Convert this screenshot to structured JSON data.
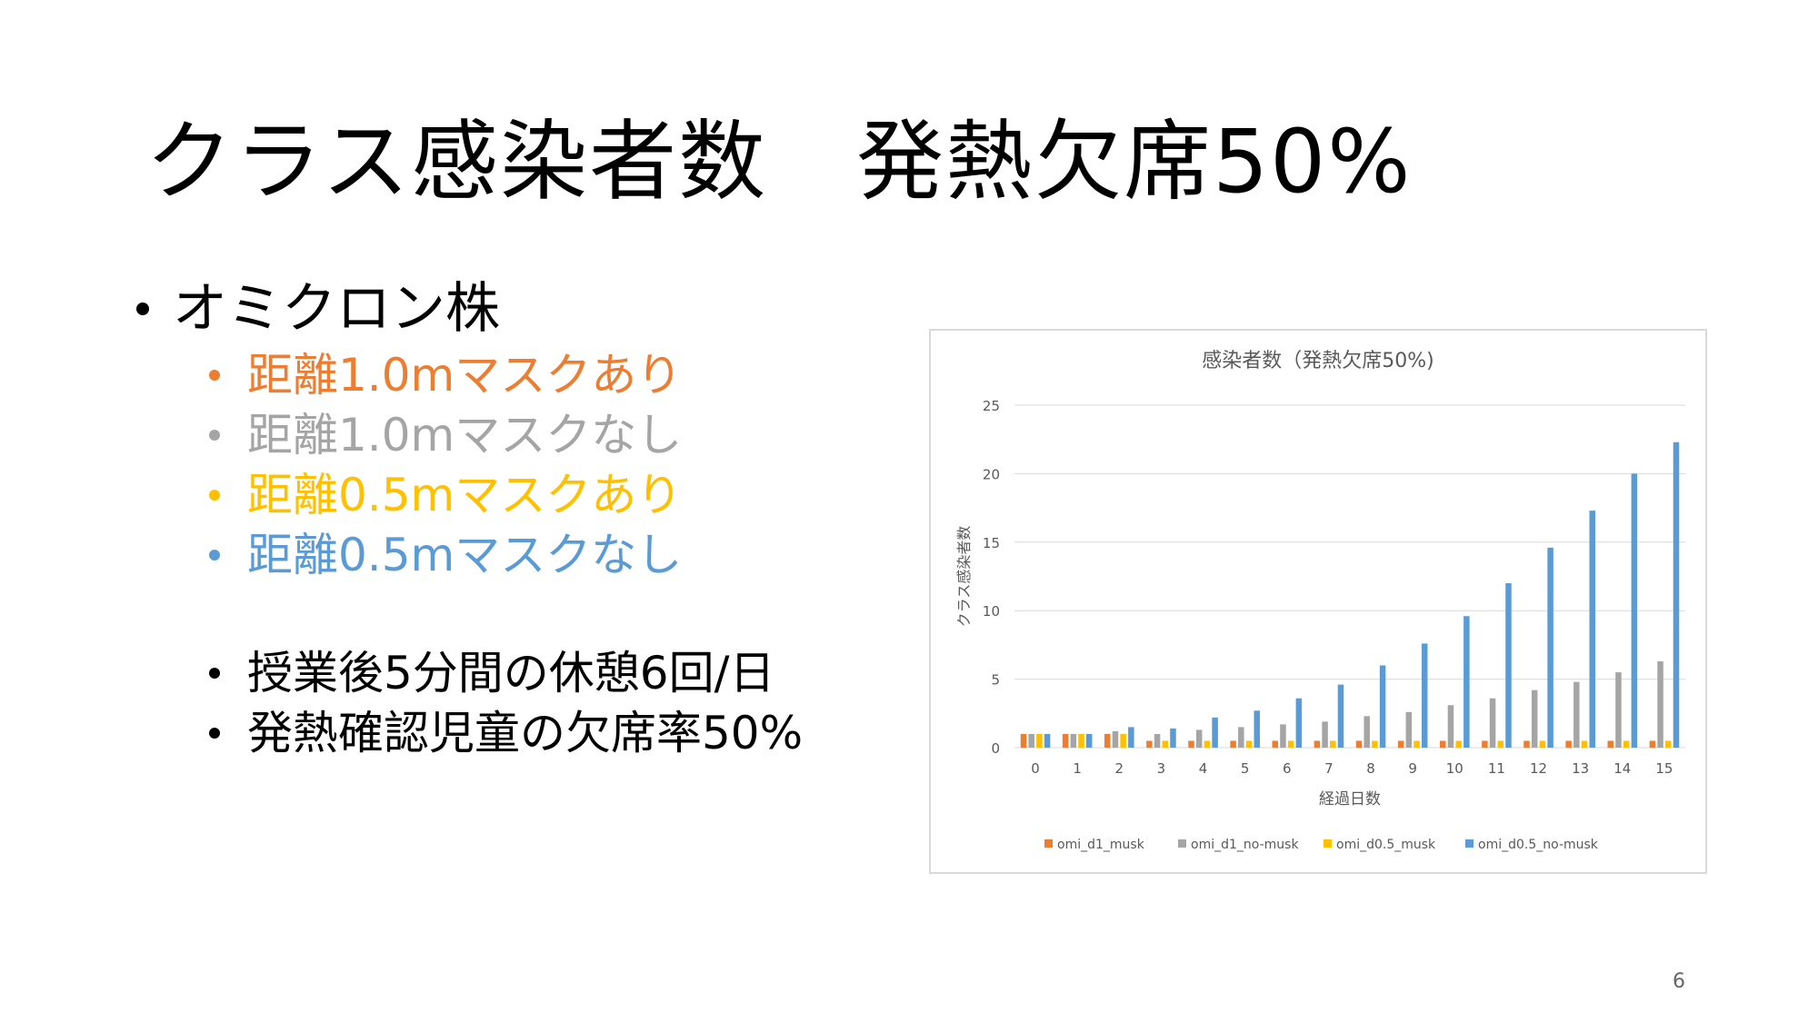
{
  "slide": {
    "title": "クラス感染者数　発熱欠席50%",
    "page_number": "6"
  },
  "bullets": {
    "main": "オミクロン株",
    "conditions": [
      {
        "label": "距離1.0mマスクあり",
        "color": "#ED7D31"
      },
      {
        "label": "距離1.0mマスクなし",
        "color": "#A5A5A5"
      },
      {
        "label": "距離0.5mマスクあり",
        "color": "#FFC000"
      },
      {
        "label": "距離0.5mマスクなし",
        "color": "#5B9BD5"
      }
    ],
    "notes": [
      "授業後5分間の休憩6回/日",
      "発熱確認児童の欠席率50%"
    ]
  },
  "chart_data": {
    "type": "bar",
    "title": "感染者数（発熱欠席50%)",
    "xlabel": "経過日数",
    "ylabel": "クラス感染者数",
    "ylim": [
      0,
      25
    ],
    "yticks": [
      0,
      5,
      10,
      15,
      20,
      25
    ],
    "grid": true,
    "legend_position": "bottom",
    "categories": [
      "0",
      "1",
      "2",
      "3",
      "4",
      "5",
      "6",
      "7",
      "8",
      "9",
      "10",
      "11",
      "12",
      "13",
      "14",
      "15"
    ],
    "series": [
      {
        "name": "omi_d1_musk",
        "color": "#ED7D31",
        "values": [
          1,
          1,
          1,
          0.5,
          0.5,
          0.5,
          0.5,
          0.5,
          0.5,
          0.5,
          0.5,
          0.5,
          0.5,
          0.5,
          0.5,
          0.5
        ]
      },
      {
        "name": "omi_d1_no-musk",
        "color": "#A5A5A5",
        "values": [
          1,
          1,
          1.2,
          1.0,
          1.3,
          1.5,
          1.7,
          1.9,
          2.3,
          2.6,
          3.1,
          3.6,
          4.2,
          4.8,
          5.5,
          6.3
        ]
      },
      {
        "name": "omi_d0.5_musk",
        "color": "#FFC000",
        "values": [
          1,
          1,
          1,
          0.5,
          0.5,
          0.5,
          0.5,
          0.5,
          0.5,
          0.5,
          0.5,
          0.5,
          0.5,
          0.5,
          0.5,
          0.5
        ]
      },
      {
        "name": "omi_d0.5_no-musk",
        "color": "#5B9BD5",
        "values": [
          1,
          1,
          1.5,
          1.4,
          2.2,
          2.7,
          3.6,
          4.6,
          6.0,
          7.6,
          9.6,
          12.0,
          14.6,
          17.3,
          20.0,
          22.3
        ]
      }
    ]
  }
}
